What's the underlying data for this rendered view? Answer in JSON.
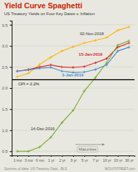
{
  "chart_data": {
    "type": "line",
    "title": "Yield Curve Spaghetti",
    "title_color": "#cc2200",
    "subtitle": "US Treasury Yields on Four Key Dates v. Inflation",
    "subtitle_color": "#333333",
    "categories": [
      "1 mo",
      "3 mo",
      "6 mo",
      "1 yr",
      "2 yr",
      "3 yr",
      "5 yr",
      "7 yr",
      "10 yr",
      "20 yr",
      "30 yr"
    ],
    "series": [
      {
        "name": "02-Nov-2018",
        "color": "#FFB300",
        "label_color": "#333333",
        "marker": "+",
        "values": [
          2.27,
          2.35,
          2.56,
          2.73,
          2.88,
          2.98,
          3.07,
          3.13,
          3.2,
          3.37,
          3.45
        ]
      },
      {
        "name": "15-Jan-2019",
        "color": "#dd2222",
        "label_color": "#dd2222",
        "marker": "+",
        "values": [
          2.4,
          2.44,
          2.5,
          2.55,
          2.5,
          2.49,
          2.51,
          2.6,
          2.7,
          2.97,
          3.07
        ]
      },
      {
        "name": "3-Jan-2019",
        "color": "#4488cc",
        "label_color": "#4488cc",
        "marker": "+",
        "values": [
          2.4,
          2.43,
          2.47,
          2.49,
          2.4,
          2.37,
          2.38,
          2.44,
          2.55,
          2.88,
          2.97
        ]
      },
      {
        "name": "14-Dec-2016",
        "color": "#77aa33",
        "label_color": "#333333",
        "marker": "+",
        "values": [
          0.5,
          0.5,
          0.6,
          0.83,
          1.18,
          1.47,
          1.93,
          2.25,
          2.6,
          3.02,
          3.12
        ]
      }
    ],
    "ylim": [
      0.4,
      3.6
    ],
    "yticks": [
      0.5,
      {
        "value": 1.0,
        "label": "1.0"
      },
      1.5,
      {
        "value": 2.0,
        "label": "2.0"
      },
      2.5,
      {
        "value": 3.0,
        "label": "3.0"
      },
      3.5
    ],
    "grid": true,
    "grid_color": "#ccccbb",
    "background_color": "#e8e8e0",
    "reference_line": {
      "value": 2.2,
      "label": "CPI = 2.2%",
      "color": "#111111"
    },
    "arrow_label": "Maturities",
    "source": "Sources of data: US Treasury Dept., BLS",
    "credit": "WOLFSTREET.com"
  }
}
